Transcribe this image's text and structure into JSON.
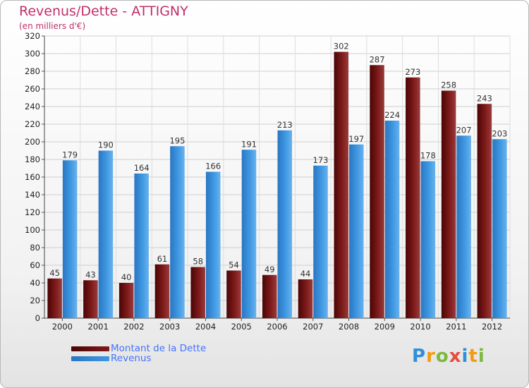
{
  "title": "Revenus/Dette - ATTIGNY",
  "subtitle": "(en milliers d'€)",
  "logo": {
    "text": "Proxiti",
    "colors": [
      "#2f8fd8",
      "#f39c12",
      "#7cba3d",
      "#e74c3c",
      "#2f8fd8",
      "#f39c12",
      "#7cba3d"
    ]
  },
  "chart_data": {
    "type": "bar",
    "title": "Revenus/Dette - ATTIGNY",
    "subtitle": "(en milliers d'€)",
    "categories": [
      "2000",
      "2001",
      "2002",
      "2003",
      "2004",
      "2005",
      "2006",
      "2007",
      "2008",
      "2009",
      "2010",
      "2011",
      "2012"
    ],
    "series": [
      {
        "name": "Montant de la Dette",
        "color": "#7a1a1a",
        "values": [
          45,
          43,
          40,
          61,
          58,
          54,
          49,
          44,
          302,
          287,
          273,
          258,
          243
        ]
      },
      {
        "name": "Revenus",
        "color": "#3d96e0",
        "values": [
          179,
          190,
          164,
          195,
          166,
          191,
          213,
          173,
          197,
          224,
          178,
          207,
          203
        ]
      }
    ],
    "ylim": [
      0,
      320
    ],
    "ytick_step": 20,
    "grid": true,
    "legend_position": "bottom-left"
  }
}
